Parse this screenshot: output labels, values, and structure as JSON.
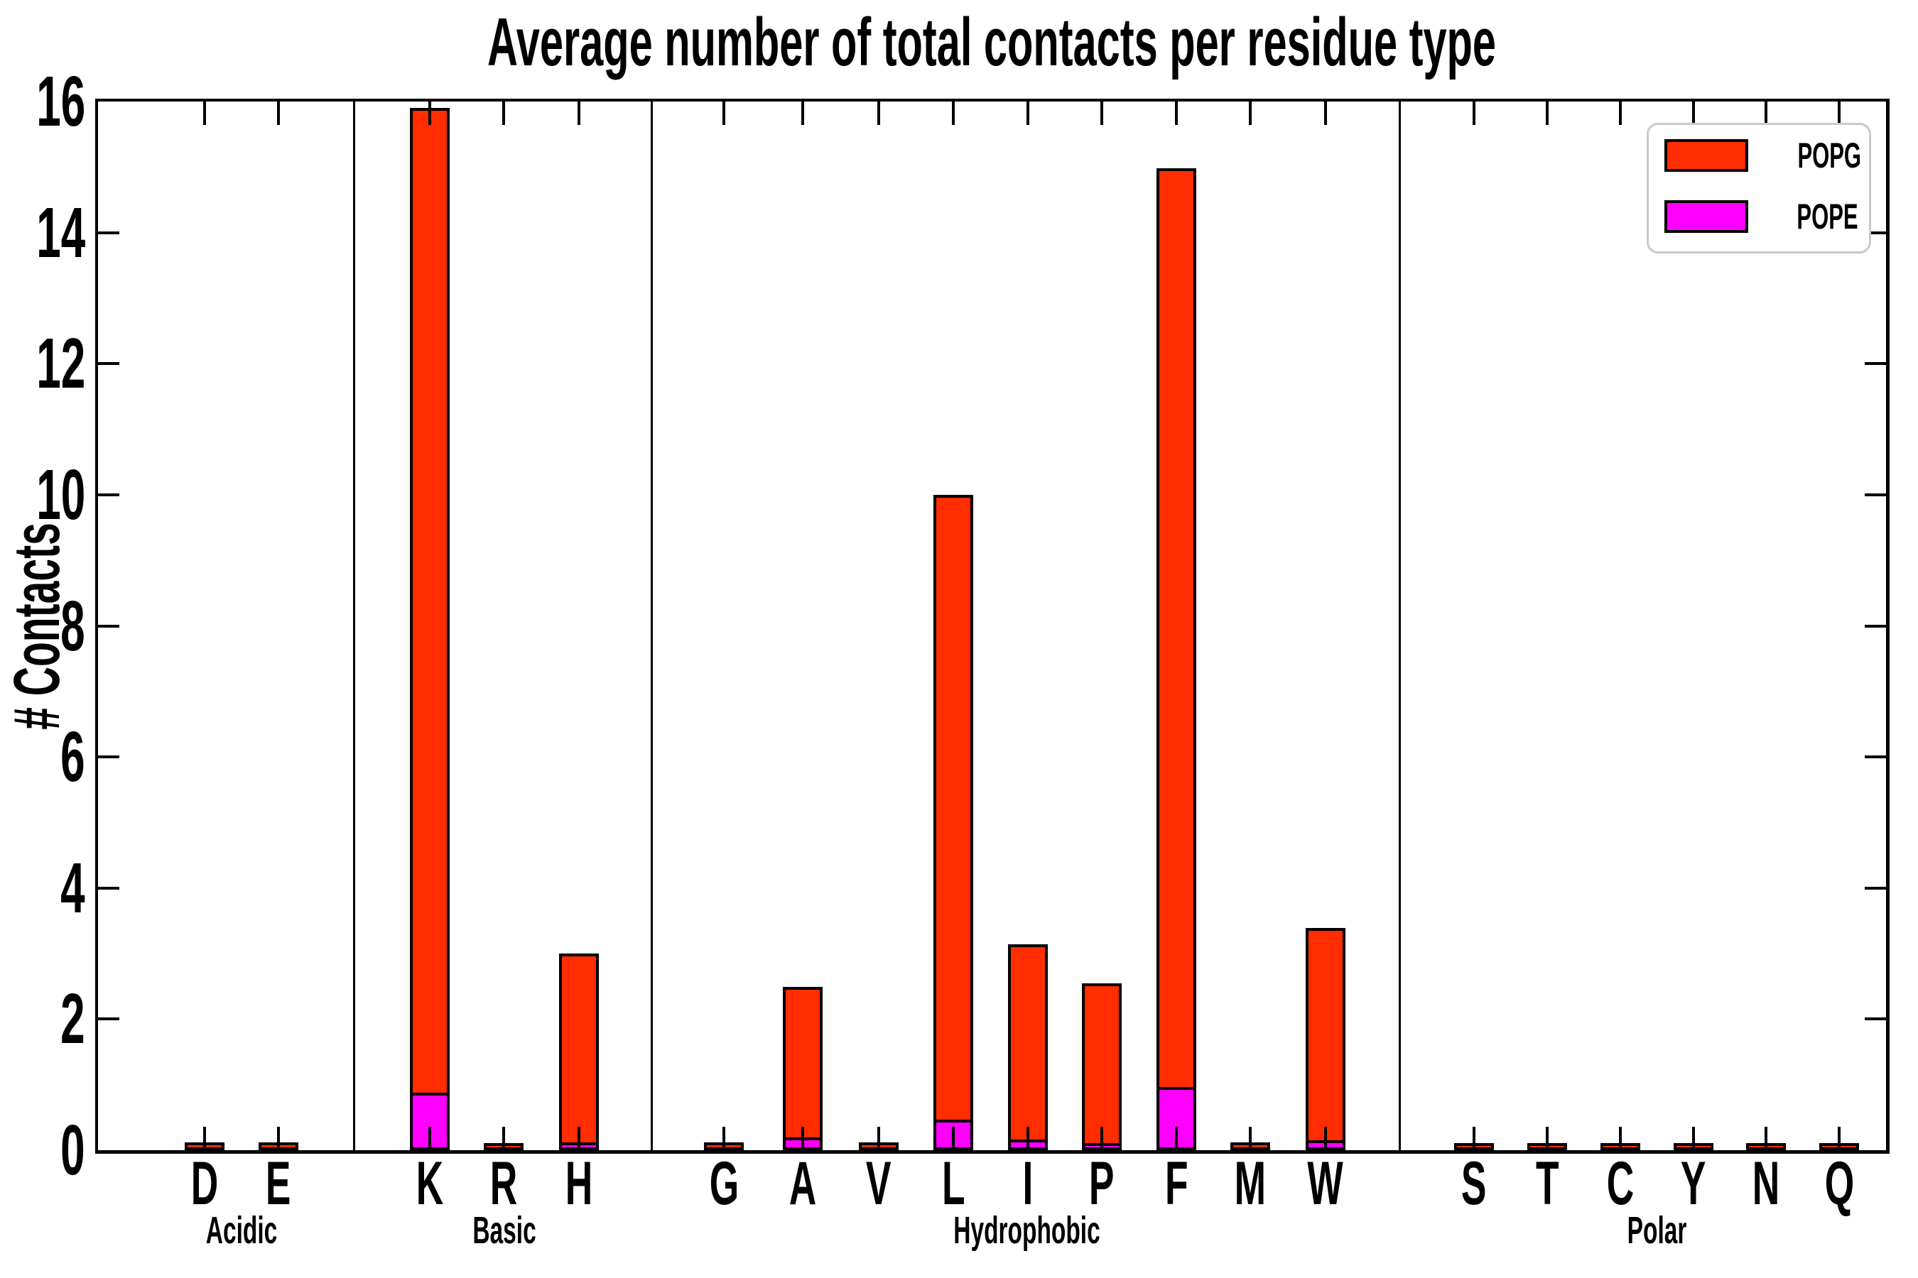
{
  "chart_data": {
    "type": "bar",
    "stacked": true,
    "title": "Average number of total contacts per residue type",
    "xlabel": "",
    "ylabel": "# Contacts",
    "ylim": [
      0,
      16
    ],
    "ytick_step": 2,
    "ytick_labels": [
      "0",
      "2",
      "4",
      "6",
      "8",
      "10",
      "12",
      "14",
      "16"
    ],
    "grid": false,
    "legend_position": "upper right",
    "categories": [
      "D",
      "E",
      "K",
      "R",
      "H",
      "G",
      "A",
      "V",
      "L",
      "I",
      "P",
      "F",
      "M",
      "W",
      "S",
      "T",
      "C",
      "Y",
      "N",
      "Q"
    ],
    "groups": [
      {
        "label": "Acidic",
        "residues": [
          "D",
          "E"
        ]
      },
      {
        "label": "Basic",
        "residues": [
          "K",
          "R",
          "H"
        ]
      },
      {
        "label": "Hydrophobic",
        "residues": [
          "G",
          "A",
          "V",
          "L",
          "I",
          "P",
          "F",
          "M",
          "W"
        ]
      },
      {
        "label": "Polar",
        "residues": [
          "S",
          "T",
          "C",
          "Y",
          "N",
          "Q"
        ]
      }
    ],
    "series": [
      {
        "name": "POPG",
        "color": "#ff2d00",
        "stack": "top",
        "values": [
          0.03,
          0.03,
          14.99,
          0.02,
          2.83,
          0.03,
          2.26,
          0.03,
          9.49,
          2.93,
          2.39,
          13.98,
          0.03,
          3.19,
          0.02,
          0.02,
          0.02,
          0.02,
          0.02,
          0.02
        ]
      },
      {
        "name": "POPE",
        "color": "#ff00ff",
        "stack": "bottom",
        "values": [
          0,
          0,
          0.83,
          0,
          0.08,
          0,
          0.15,
          0,
          0.42,
          0.12,
          0.07,
          0.92,
          0,
          0.11,
          0,
          0,
          0,
          0,
          0,
          0
        ]
      }
    ],
    "totals": [
      0.03,
      0.03,
      15.82,
      0.02,
      2.91,
      0.03,
      2.41,
      0.03,
      9.91,
      3.05,
      2.46,
      14.9,
      0.03,
      3.3,
      0.02,
      0.02,
      0.02,
      0.02,
      0.02,
      0.02
    ]
  }
}
